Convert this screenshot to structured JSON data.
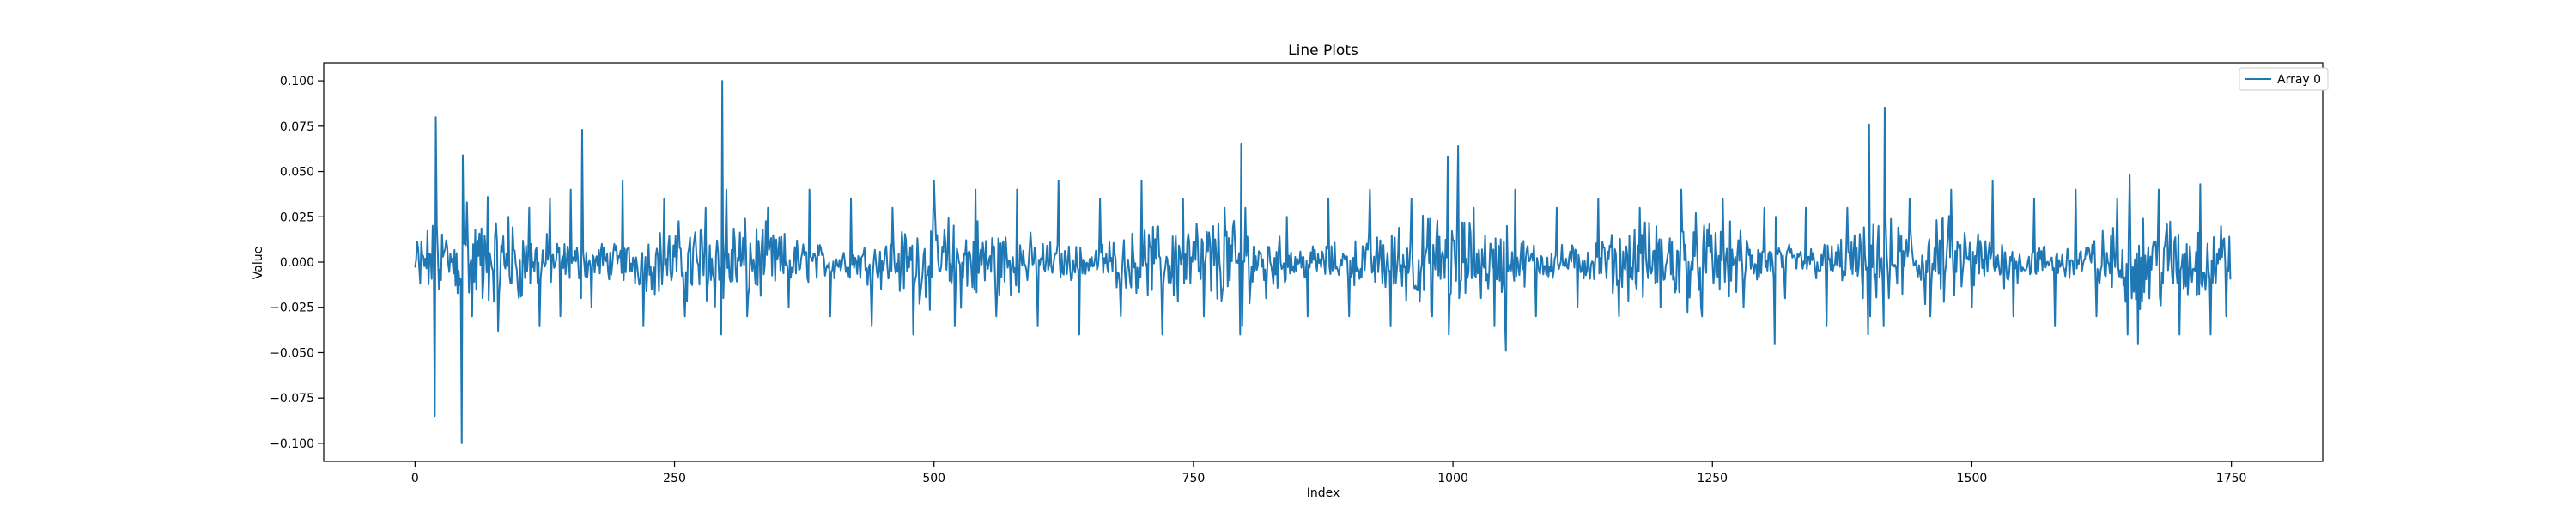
{
  "chart_data": {
    "type": "line",
    "title": "Line Plots",
    "xlabel": "Index",
    "ylabel": "Value",
    "xlim": [
      -88,
      1838
    ],
    "ylim": [
      -0.11,
      0.11
    ],
    "xticks": [
      0,
      250,
      500,
      750,
      1000,
      1250,
      1500,
      1750
    ],
    "xtick_labels": [
      "0",
      "250",
      "500",
      "750",
      "1000",
      "1250",
      "1500",
      "1750"
    ],
    "yticks": [
      0.1,
      0.075,
      0.05,
      0.025,
      0.0,
      -0.025,
      -0.05,
      -0.075,
      -0.1
    ],
    "ytick_labels": [
      "0.100",
      "0.075",
      "0.050",
      "0.025",
      "0.000",
      "−0.025",
      "−0.050",
      "−0.075",
      "−0.100"
    ],
    "grid": false,
    "legend_placement": "top-right",
    "series": [
      {
        "name": "Array 0",
        "color": "#1f77b4",
        "n_points": 1750,
        "x": [
          0,
          5,
          10,
          15,
          19,
          20,
          21,
          25,
          30,
          35,
          40,
          45,
          46,
          47,
          50,
          55,
          60,
          65,
          70,
          80,
          90,
          100,
          110,
          120,
          130,
          140,
          150,
          160,
          161,
          162,
          170,
          180,
          200,
          220,
          240,
          260,
          280,
          295,
          296,
          297,
          300,
          320,
          340,
          360,
          380,
          400,
          420,
          440,
          460,
          480,
          500,
          520,
          540,
          560,
          580,
          600,
          620,
          640,
          660,
          680,
          700,
          720,
          740,
          760,
          780,
          795,
          796,
          797,
          800,
          820,
          840,
          860,
          880,
          900,
          920,
          940,
          960,
          980,
          995,
          996,
          1005,
          1006,
          1020,
          1040,
          1050,
          1051,
          1052,
          1060,
          1080,
          1100,
          1120,
          1140,
          1160,
          1180,
          1200,
          1220,
          1240,
          1260,
          1280,
          1300,
          1310,
          1311,
          1320,
          1340,
          1360,
          1380,
          1395,
          1400,
          1401,
          1402,
          1410,
          1415,
          1416,
          1420,
          1440,
          1460,
          1480,
          1500,
          1520,
          1540,
          1560,
          1580,
          1600,
          1620,
          1640,
          1650,
          1652,
          1660,
          1680,
          1700,
          1720,
          1730,
          1740,
          1745,
          1748
        ],
        "y": [
          -0.003,
          -0.012,
          0.002,
          0.004,
          -0.085,
          0.08,
          0.02,
          -0.01,
          0.012,
          0.0,
          0.005,
          -0.1,
          0.059,
          0.01,
          0.033,
          -0.03,
          0.012,
          -0.02,
          0.036,
          -0.038,
          0.025,
          -0.02,
          0.03,
          -0.035,
          0.035,
          -0.03,
          0.04,
          -0.02,
          0.073,
          0.005,
          -0.025,
          0.01,
          0.045,
          -0.035,
          0.035,
          -0.03,
          0.03,
          -0.04,
          0.1,
          -0.02,
          0.04,
          -0.03,
          0.03,
          -0.025,
          0.04,
          -0.03,
          0.035,
          -0.035,
          0.03,
          -0.04,
          0.045,
          -0.035,
          0.04,
          -0.03,
          0.04,
          -0.035,
          0.045,
          -0.04,
          0.035,
          -0.03,
          0.045,
          -0.04,
          0.035,
          -0.03,
          0.03,
          -0.04,
          0.065,
          -0.035,
          0.03,
          -0.02,
          0.025,
          -0.03,
          0.035,
          -0.03,
          0.04,
          -0.035,
          0.035,
          -0.03,
          0.058,
          -0.04,
          0.064,
          -0.02,
          0.03,
          -0.035,
          -0.03,
          -0.049,
          0.02,
          0.04,
          -0.03,
          0.03,
          -0.025,
          0.035,
          -0.03,
          0.03,
          -0.025,
          0.04,
          -0.03,
          0.035,
          -0.025,
          0.03,
          -0.045,
          0.025,
          -0.02,
          0.03,
          -0.035,
          0.03,
          -0.02,
          -0.04,
          0.076,
          -0.03,
          0.02,
          -0.035,
          0.085,
          -0.02,
          0.035,
          -0.03,
          0.04,
          -0.025,
          0.045,
          -0.03,
          0.035,
          -0.035,
          0.04,
          -0.03,
          0.035,
          -0.04,
          0.048,
          -0.045,
          0.04,
          -0.04,
          0.043,
          -0.04,
          0.02,
          -0.03,
          0.014
        ]
      }
    ]
  }
}
